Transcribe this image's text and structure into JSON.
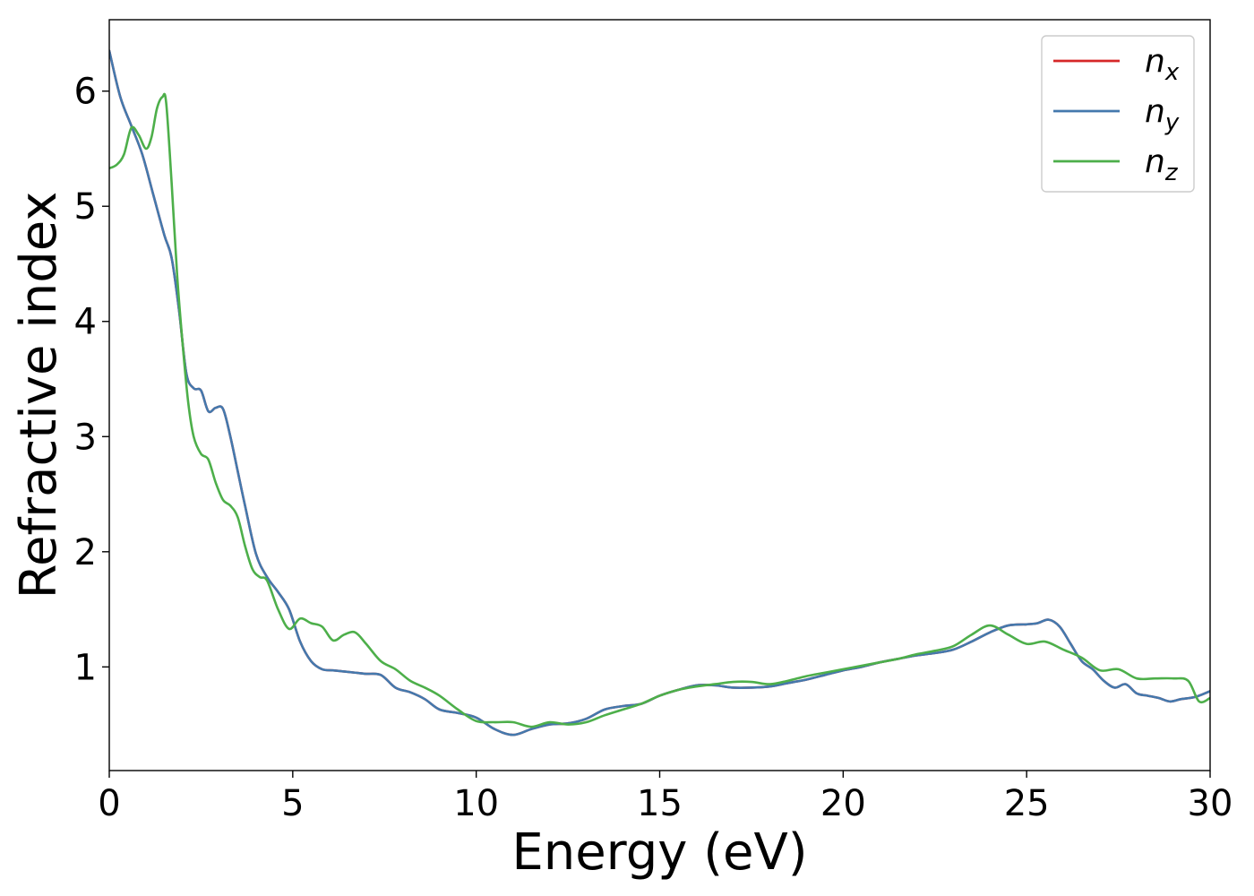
{
  "chart_data": {
    "type": "line",
    "title": "",
    "xlabel": "Energy (eV)",
    "ylabel": "Refractive index",
    "xlim": [
      0,
      30
    ],
    "ylim": [
      0.1,
      6.62
    ],
    "xticks": [
      "0",
      "5",
      "10",
      "15",
      "20",
      "25",
      "30"
    ],
    "xtick_values": [
      0,
      5,
      10,
      15,
      20,
      25,
      30
    ],
    "yticks": [
      "1",
      "2",
      "3",
      "4",
      "5",
      "6"
    ],
    "ytick_values": [
      1,
      2,
      3,
      4,
      5,
      6
    ],
    "grid": false,
    "legend_position": "top-right",
    "series": [
      {
        "name": "n",
        "subscript": "x",
        "color": "#d62728",
        "x": [
          0,
          0.3,
          0.6,
          0.9,
          1.2,
          1.5,
          1.7,
          1.9,
          2.1,
          2.3,
          2.5,
          2.7,
          2.9,
          3.1,
          3.3,
          3.5,
          3.7,
          4.0,
          4.3,
          4.6,
          4.9,
          5.2,
          5.5,
          5.8,
          6.1,
          6.4,
          6.7,
          7.0,
          7.4,
          7.8,
          8.2,
          8.6,
          9.0,
          9.5,
          10.0,
          10.5,
          11.0,
          11.5,
          12.0,
          12.5,
          13.0,
          13.5,
          14.0,
          14.5,
          15.0,
          15.5,
          16.0,
          16.5,
          17.0,
          17.5,
          18.0,
          18.5,
          19.0,
          19.5,
          20.0,
          20.5,
          21.0,
          21.5,
          22.0,
          22.5,
          23.0,
          23.5,
          24.0,
          24.5,
          25.0,
          25.3,
          25.6,
          25.9,
          26.2,
          26.5,
          26.8,
          27.1,
          27.4,
          27.7,
          28.0,
          28.3,
          28.6,
          28.9,
          29.2,
          29.6,
          30.0
        ],
        "values": [
          6.35,
          5.95,
          5.7,
          5.45,
          5.1,
          4.75,
          4.55,
          4.1,
          3.55,
          3.42,
          3.4,
          3.22,
          3.25,
          3.24,
          3.0,
          2.7,
          2.4,
          1.98,
          1.78,
          1.65,
          1.5,
          1.22,
          1.05,
          0.98,
          0.97,
          0.96,
          0.95,
          0.94,
          0.93,
          0.82,
          0.78,
          0.72,
          0.63,
          0.6,
          0.56,
          0.46,
          0.41,
          0.46,
          0.5,
          0.51,
          0.55,
          0.63,
          0.66,
          0.68,
          0.75,
          0.8,
          0.84,
          0.84,
          0.82,
          0.82,
          0.83,
          0.86,
          0.89,
          0.93,
          0.97,
          1.0,
          1.04,
          1.07,
          1.1,
          1.12,
          1.15,
          1.22,
          1.3,
          1.36,
          1.37,
          1.38,
          1.41,
          1.35,
          1.2,
          1.05,
          0.98,
          0.88,
          0.82,
          0.85,
          0.77,
          0.75,
          0.73,
          0.7,
          0.72,
          0.74,
          0.79
        ]
      },
      {
        "name": "n",
        "subscript": "y",
        "color": "#4479ad",
        "x": [
          0,
          0.3,
          0.6,
          0.9,
          1.2,
          1.5,
          1.7,
          1.9,
          2.1,
          2.3,
          2.5,
          2.7,
          2.9,
          3.1,
          3.3,
          3.5,
          3.7,
          4.0,
          4.3,
          4.6,
          4.9,
          5.2,
          5.5,
          5.8,
          6.1,
          6.4,
          6.7,
          7.0,
          7.4,
          7.8,
          8.2,
          8.6,
          9.0,
          9.5,
          10.0,
          10.5,
          11.0,
          11.5,
          12.0,
          12.5,
          13.0,
          13.5,
          14.0,
          14.5,
          15.0,
          15.5,
          16.0,
          16.5,
          17.0,
          17.5,
          18.0,
          18.5,
          19.0,
          19.5,
          20.0,
          20.5,
          21.0,
          21.5,
          22.0,
          22.5,
          23.0,
          23.5,
          24.0,
          24.5,
          25.0,
          25.3,
          25.6,
          25.9,
          26.2,
          26.5,
          26.8,
          27.1,
          27.4,
          27.7,
          28.0,
          28.3,
          28.6,
          28.9,
          29.2,
          29.6,
          30.0
        ],
        "values": [
          6.35,
          5.95,
          5.7,
          5.45,
          5.1,
          4.75,
          4.55,
          4.1,
          3.55,
          3.42,
          3.4,
          3.22,
          3.25,
          3.24,
          3.0,
          2.7,
          2.4,
          1.98,
          1.78,
          1.65,
          1.5,
          1.22,
          1.05,
          0.98,
          0.97,
          0.96,
          0.95,
          0.94,
          0.93,
          0.82,
          0.78,
          0.72,
          0.63,
          0.6,
          0.56,
          0.46,
          0.41,
          0.46,
          0.5,
          0.51,
          0.55,
          0.63,
          0.66,
          0.68,
          0.75,
          0.8,
          0.84,
          0.84,
          0.82,
          0.82,
          0.83,
          0.86,
          0.89,
          0.93,
          0.97,
          1.0,
          1.04,
          1.07,
          1.1,
          1.12,
          1.15,
          1.22,
          1.3,
          1.36,
          1.37,
          1.38,
          1.41,
          1.35,
          1.2,
          1.05,
          0.98,
          0.88,
          0.82,
          0.85,
          0.77,
          0.75,
          0.73,
          0.7,
          0.72,
          0.74,
          0.79
        ]
      },
      {
        "name": "n",
        "subscript": "z",
        "color": "#4daf4a",
        "x": [
          0,
          0.2,
          0.4,
          0.6,
          0.8,
          1.0,
          1.15,
          1.3,
          1.45,
          1.55,
          1.7,
          1.85,
          2.0,
          2.15,
          2.3,
          2.5,
          2.7,
          2.9,
          3.1,
          3.3,
          3.5,
          3.7,
          3.9,
          4.1,
          4.3,
          4.6,
          4.9,
          5.2,
          5.5,
          5.8,
          6.1,
          6.4,
          6.7,
          7.0,
          7.4,
          7.8,
          8.2,
          8.6,
          9.0,
          9.5,
          10.0,
          10.5,
          11.0,
          11.5,
          12.0,
          12.5,
          13.0,
          13.5,
          14.0,
          14.5,
          15.0,
          15.5,
          16.0,
          16.5,
          17.0,
          17.5,
          18.0,
          18.5,
          19.0,
          19.5,
          20.0,
          20.5,
          21.0,
          21.5,
          22.0,
          22.5,
          23.0,
          23.5,
          24.0,
          24.5,
          25.0,
          25.5,
          26.0,
          26.5,
          27.0,
          27.5,
          28.0,
          28.5,
          29.0,
          29.4,
          29.7,
          30.0
        ],
        "values": [
          5.33,
          5.36,
          5.45,
          5.68,
          5.62,
          5.5,
          5.6,
          5.85,
          5.95,
          5.9,
          5.2,
          4.4,
          3.8,
          3.3,
          3.0,
          2.85,
          2.8,
          2.6,
          2.45,
          2.4,
          2.3,
          2.05,
          1.85,
          1.78,
          1.75,
          1.5,
          1.33,
          1.42,
          1.38,
          1.35,
          1.23,
          1.28,
          1.3,
          1.2,
          1.05,
          0.98,
          0.88,
          0.82,
          0.75,
          0.63,
          0.53,
          0.52,
          0.52,
          0.48,
          0.52,
          0.5,
          0.52,
          0.58,
          0.63,
          0.68,
          0.75,
          0.8,
          0.83,
          0.85,
          0.87,
          0.87,
          0.85,
          0.88,
          0.92,
          0.95,
          0.98,
          1.01,
          1.04,
          1.07,
          1.11,
          1.14,
          1.18,
          1.28,
          1.36,
          1.28,
          1.2,
          1.22,
          1.15,
          1.08,
          0.97,
          0.98,
          0.9,
          0.9,
          0.9,
          0.88,
          0.7,
          0.73
        ]
      }
    ]
  }
}
